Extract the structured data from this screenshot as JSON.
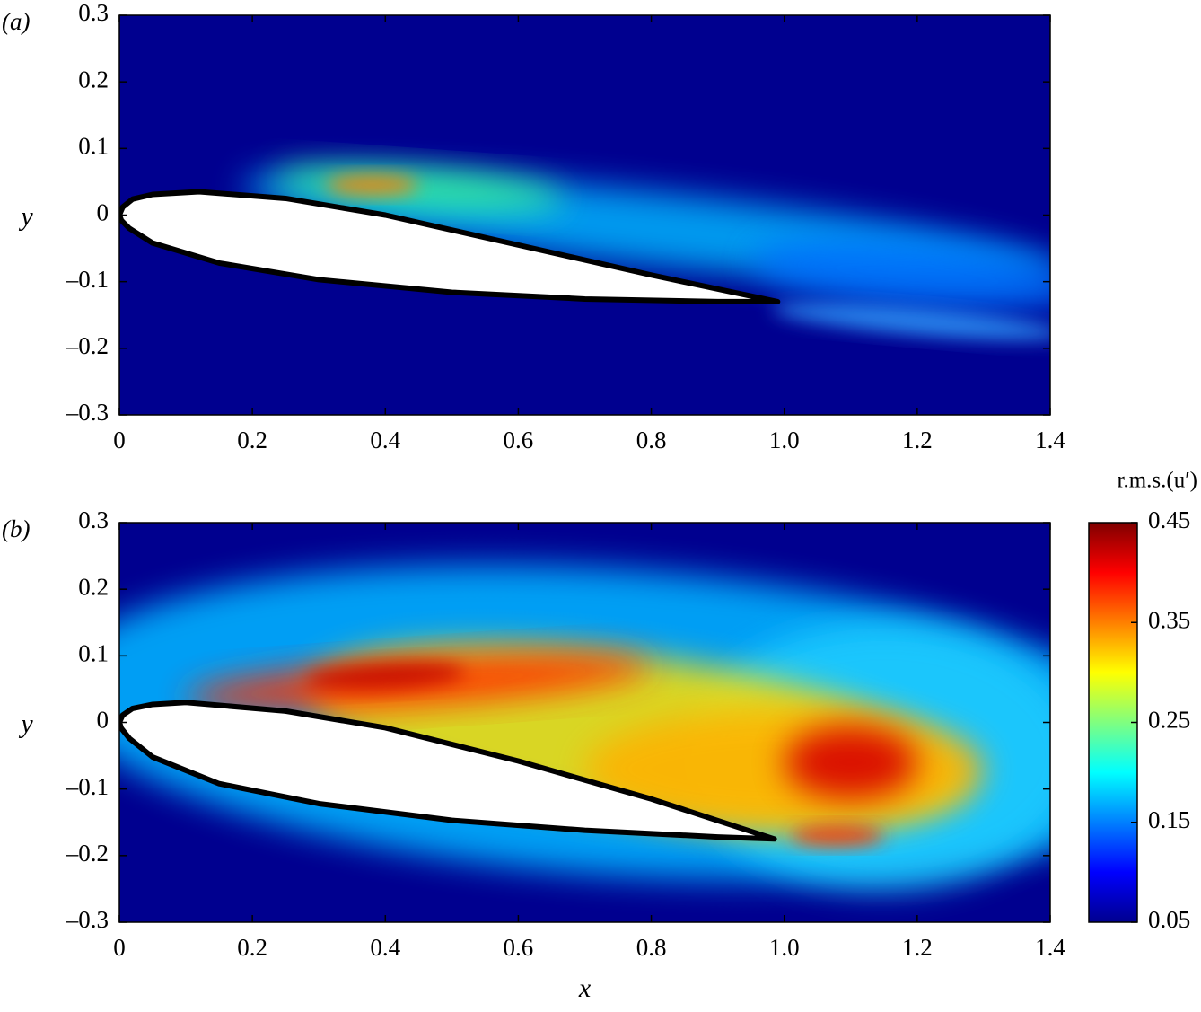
{
  "chart_data": [
    {
      "type": "heatmap",
      "label": "(a)",
      "ylabel": "y",
      "xlim": [
        0,
        1.4
      ],
      "ylim": [
        -0.3,
        0.3
      ],
      "xticks": [
        0,
        0.2,
        0.4,
        0.6,
        0.8,
        {
          "value": 1,
          "label": "1.0"
        },
        1.2,
        1.4
      ],
      "yticks": [
        {
          "value": -0.3,
          "label": "–0.3"
        },
        {
          "value": -0.2,
          "label": "–0.2"
        },
        {
          "value": -0.1,
          "label": "–0.1"
        },
        0,
        0.1,
        0.2,
        0.3
      ]
    },
    {
      "type": "heatmap",
      "label": "(b)",
      "ylabel": "y",
      "xlabel": "x",
      "xlim": [
        0,
        1.4
      ],
      "ylim": [
        -0.3,
        0.3
      ],
      "xticks": [
        0,
        0.2,
        0.4,
        0.6,
        0.8,
        {
          "value": 1,
          "label": "1.0"
        },
        1.2,
        1.4
      ],
      "yticks": [
        {
          "value": -0.3,
          "label": "–0.3"
        },
        {
          "value": -0.2,
          "label": "–0.2"
        },
        {
          "value": -0.1,
          "label": "–0.1"
        },
        0,
        0.1,
        0.2,
        0.3
      ],
      "colorbar": {
        "label": "r.m.s.(u′)",
        "colormap": "jet",
        "lim": [
          0.05,
          0.45
        ],
        "ticks": [
          0.05,
          0.15,
          0.25,
          0.35,
          0.45
        ]
      }
    }
  ]
}
